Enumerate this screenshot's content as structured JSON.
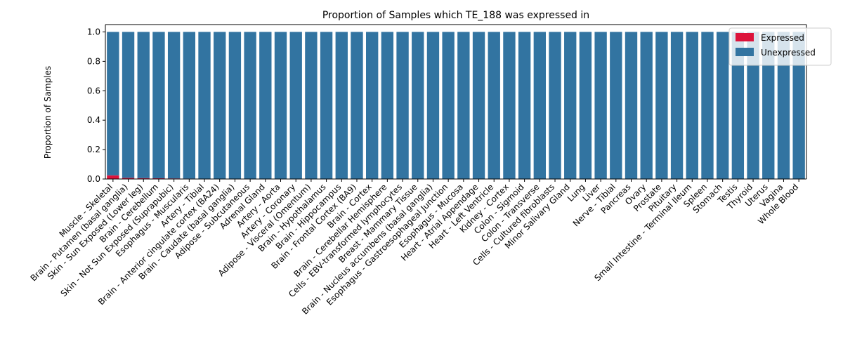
{
  "chart_data": {
    "type": "bar",
    "stacked": true,
    "title": "Proportion of Samples which TE_188 was expressed in",
    "xlabel": "",
    "ylabel": "Proportion of Samples",
    "ylim": [
      0,
      1.05
    ],
    "yticks": [
      "0.0",
      "0.2",
      "0.4",
      "0.6",
      "0.8",
      "1.0"
    ],
    "ytick_values": [
      0,
      0.2,
      0.4,
      0.6,
      0.8,
      1.0
    ],
    "grid": false,
    "legend_position": "top-right",
    "categories": [
      "Muscle - Skeletal",
      "Brain - Putamen (basal ganglia)",
      "Skin - Sun Exposed (Lower leg)",
      "Brain - Cerebellum",
      "Skin - Not Sun Exposed (Suprapubic)",
      "Esophagus - Muscularis",
      "Artery - Tibial",
      "Brain - Anterior cingulate cortex (BA24)",
      "Brain - Caudate (basal ganglia)",
      "Adipose - Subcutaneous",
      "Adrenal Gland",
      "Artery - Aorta",
      "Artery - Coronary",
      "Adipose - Visceral (Omentum)",
      "Brain - Hypothalamus",
      "Brain - Hippocampus",
      "Brain - Frontal Cortex (BA9)",
      "Brain - Cortex",
      "Brain - Cerebellar Hemisphere",
      "Cells - EBV-transformed lymphocytes",
      "Breast - Mammary Tissue",
      "Brain - Nucleus accumbens (basal ganglia)",
      "Esophagus - Gastroesophageal Junction",
      "Esophagus - Mucosa",
      "Heart - Atrial Appendage",
      "Heart - Left Ventricle",
      "Kidney - Cortex",
      "Colon - Sigmoid",
      "Colon - Transverse",
      "Cells - Cultured fibroblasts",
      "Minor Salivary Gland",
      "Lung",
      "Liver",
      "Nerve - Tibial",
      "Pancreas",
      "Ovary",
      "Prostate",
      "Pituitary",
      "Small Intestine - Terminal Ileum",
      "Spleen",
      "Stomach",
      "Testis",
      "Thyroid",
      "Uterus",
      "Vagina",
      "Whole Blood"
    ],
    "series": [
      {
        "name": "Expressed",
        "color": "#dc143c",
        "values": [
          0.025,
          0.008,
          0.006,
          0.005,
          0.004,
          0.003,
          0,
          0,
          0,
          0,
          0,
          0,
          0,
          0,
          0,
          0,
          0,
          0,
          0,
          0,
          0,
          0,
          0,
          0,
          0,
          0,
          0,
          0,
          0,
          0,
          0,
          0,
          0,
          0,
          0,
          0,
          0,
          0,
          0,
          0,
          0,
          0,
          0,
          0,
          0,
          0
        ]
      },
      {
        "name": "Unexpressed",
        "color": "#3274a1",
        "values": [
          0.975,
          0.992,
          0.994,
          0.995,
          0.996,
          0.997,
          1,
          1,
          1,
          1,
          1,
          1,
          1,
          1,
          1,
          1,
          1,
          1,
          1,
          1,
          1,
          1,
          1,
          1,
          1,
          1,
          1,
          1,
          1,
          1,
          1,
          1,
          1,
          1,
          1,
          1,
          1,
          1,
          1,
          1,
          1,
          1,
          1,
          1,
          1,
          1
        ]
      }
    ]
  }
}
